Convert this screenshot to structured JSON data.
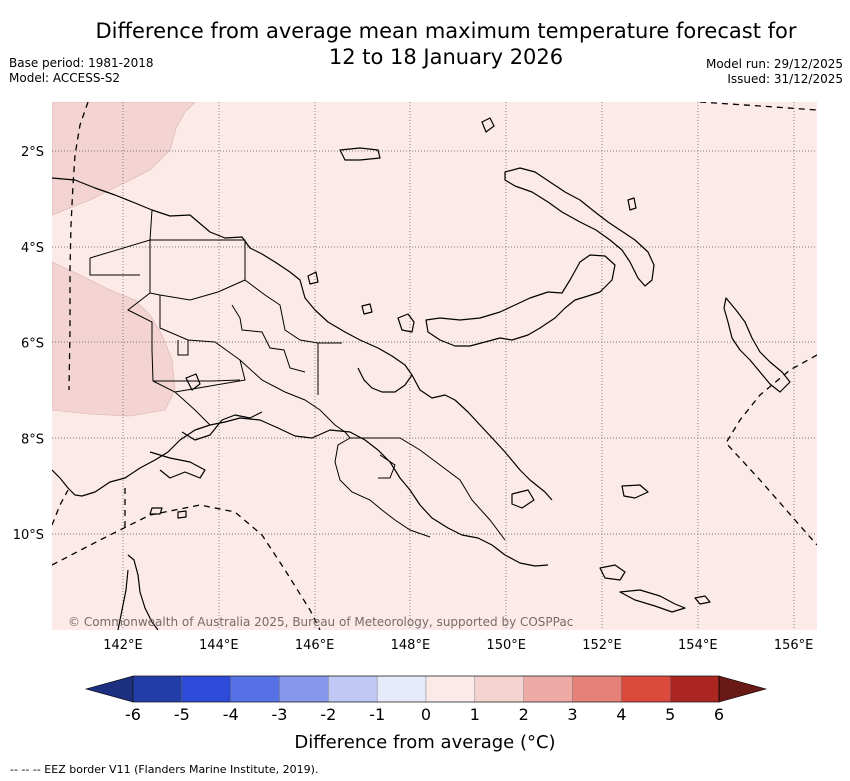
{
  "header": {
    "title_line1": "Difference from average mean maximum temperature forecast for",
    "title_line2": "12 to 18 January 2026",
    "base_period": "Base period: 1981-2018",
    "model": "Model: ACCESS-S2",
    "model_run": "Model run: 29/12/2025",
    "issued": "Issued: 31/12/2025"
  },
  "map": {
    "background_color": "#fbeae8",
    "warmer_patch_color": "#f3d4d2",
    "lon_labels": [
      "142°E",
      "144°E",
      "146°E",
      "148°E",
      "150°E",
      "152°E",
      "154°E",
      "156°E"
    ],
    "lat_labels": [
      "2°S",
      "4°S",
      "6°S",
      "8°S",
      "10°S"
    ],
    "lon_range": [
      140.5,
      156.5
    ],
    "lat_range": [
      -12,
      -1
    ],
    "copyright": "© Commonwealth of Australia 2025, Bureau of Meteorology, supported by COSPPac"
  },
  "colorbar": {
    "ticks": [
      "-6",
      "-5",
      "-4",
      "-3",
      "-2",
      "-1",
      "0",
      "1",
      "2",
      "3",
      "4",
      "5",
      "6"
    ],
    "colors": [
      "#233da8",
      "#2e4ad8",
      "#5670e6",
      "#8798ec",
      "#c0c8f4",
      "#e6eafa",
      "#fbeae8",
      "#f5d3d1",
      "#eeaaa5",
      "#e58178",
      "#dc4a3d",
      "#ad2520"
    ],
    "under_color": "#1c2f80",
    "over_color": "#6a1a16",
    "label": "Difference from average (°C)"
  },
  "footnote": "--  --  -- EEZ border V11 (Flanders Marine Institute, 2019)."
}
